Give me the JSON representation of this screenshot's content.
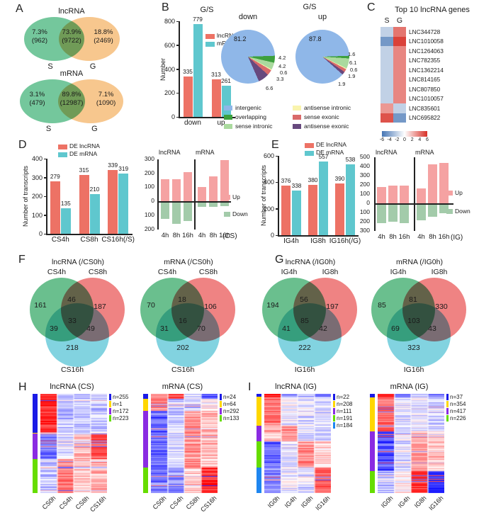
{
  "panel_letters": {
    "A": "A",
    "B": "B",
    "C": "C",
    "D": "D",
    "E": "E",
    "F": "F",
    "G": "G",
    "H": "H",
    "I": "I"
  },
  "pie_header": {
    "title": "G/S"
  },
  "colors": {
    "lncrna_bar": "#ed7265",
    "mrna_bar": "#5fc7ce",
    "up": "#f5a2a2",
    "down": "#a3cbaa",
    "venn_green": "#6abf8e",
    "venn_pink": "#ef8383",
    "venn_cyan": "#82d3e0"
  },
  "chart_data": [
    {
      "id": "vennA1",
      "type": "venn2",
      "title": "lncRNA",
      "sets": [
        "S",
        "G"
      ],
      "regions": {
        "left_pct": "7.3%",
        "left_n": "(962)",
        "overlap_pct": "73.9%",
        "overlap_n": "(9722)",
        "right_pct": "18.8%",
        "right_n": "(2469)"
      }
    },
    {
      "id": "vennA2",
      "type": "venn2",
      "title": "mRNA",
      "sets": [
        "S",
        "G"
      ],
      "regions": {
        "left_pct": "3.1%",
        "left_n": "(479)",
        "overlap_pct": "89.8%",
        "overlap_n": "(12987)",
        "right_pct": "7.1%",
        "right_n": "(1090)"
      }
    },
    {
      "id": "barB",
      "type": "bar",
      "title": "G/S",
      "ylabel": "Number",
      "ylim": [
        0,
        800
      ],
      "yticks": [
        0,
        200,
        400,
        600,
        800
      ],
      "categories": [
        "down",
        "up"
      ],
      "series": [
        {
          "name": "lncRNA",
          "color": "#ed7265",
          "values": [
            335,
            313
          ]
        },
        {
          "name": "mRNA",
          "color": "#5fc7ce",
          "values": [
            779,
            261
          ]
        }
      ]
    },
    {
      "id": "pieDown",
      "type": "pie",
      "title": "down",
      "labels": [
        "intergenic",
        "overlapping",
        "sense intronic",
        "antisense intronic",
        "sense exonic",
        "antisense exonic"
      ],
      "colors": [
        "#8fb7e8",
        "#3da03d",
        "#aada9e",
        "#f9f4ad",
        "#d96a6a",
        "#67497e"
      ],
      "values": [
        81.2,
        4.2,
        4.2,
        0.6,
        3.3,
        6.6
      ]
    },
    {
      "id": "pieUp",
      "type": "pie",
      "title": "up",
      "labels": [
        "intergenic",
        "overlapping",
        "sense intronic",
        "antisense intronic",
        "sense exonic",
        "antisense exonic"
      ],
      "colors": [
        "#8fb7e8",
        "#3da03d",
        "#aada9e",
        "#f9f4ad",
        "#d96a6a",
        "#67497e"
      ],
      "values": [
        87.8,
        1.6,
        6.1,
        0.6,
        1.9,
        1.9
      ]
    },
    {
      "id": "heatC",
      "type": "heatmap_genes",
      "title": "Top 10 lncRNA genes",
      "columns": [
        "S",
        "G"
      ],
      "genes": [
        "LNC344728",
        "LNC1010058",
        "LNC1264063",
        "LNC782355",
        "LNC1362214",
        "LNC814165",
        "LNC807850",
        "LNC1010057",
        "LNC835601",
        "LNC695822"
      ],
      "values": [
        [
          -2,
          4
        ],
        [
          -4.5,
          5.5
        ],
        [
          -2,
          3.5
        ],
        [
          -2,
          3.5
        ],
        [
          -2,
          3.5
        ],
        [
          -2,
          3.5
        ],
        [
          -2,
          3.5
        ],
        [
          -2,
          3.5
        ],
        [
          3,
          -2
        ],
        [
          5,
          -4.5
        ]
      ],
      "scale_ticks": [
        "-6",
        "-4",
        "-2",
        "0",
        "2",
        "4",
        "6"
      ]
    },
    {
      "id": "barD",
      "type": "bar",
      "ylabel": "Number of transcripts",
      "ylim": [
        0,
        400
      ],
      "yticks": [
        0,
        100,
        200,
        300,
        400
      ],
      "categories": [
        "CS4h",
        "CS8h",
        "CS16h"
      ],
      "axis_suffix": "(/S)",
      "series": [
        {
          "name": "DE lncRNA",
          "color": "#ed7265",
          "values": [
            279,
            315,
            339
          ]
        },
        {
          "name": "DE mRNA",
          "color": "#5fc7ce",
          "values": [
            135,
            210,
            319
          ]
        }
      ]
    },
    {
      "id": "udD",
      "type": "updown",
      "categories": [
        "4h",
        "8h",
        "16h"
      ],
      "axis_suffix": "(CS)",
      "up_label": "Up",
      "down_label": "Down",
      "uplim": 300,
      "downlim": 200,
      "ytick_step": 100,
      "panels": [
        {
          "title": "lncRNA",
          "up": [
            160,
            160,
            207
          ],
          "down": [
            119,
            155,
            132
          ]
        },
        {
          "title": "mRNA",
          "up": [
            100,
            180,
            295
          ],
          "down": [
            35,
            30,
            25
          ]
        }
      ]
    },
    {
      "id": "barE",
      "type": "bar",
      "ylabel": "Number of transcripts",
      "ylim": [
        0,
        600
      ],
      "yticks": [
        0,
        200,
        400,
        600
      ],
      "categories": [
        "IG4h",
        "IG8h",
        "IG16h"
      ],
      "axis_suffix": "(/G)",
      "series": [
        {
          "name": "DE lncRNA",
          "color": "#ed7265",
          "values": [
            376,
            380,
            390
          ]
        },
        {
          "name": "DE mRNA",
          "color": "#5fc7ce",
          "values": [
            338,
            557,
            538
          ]
        }
      ]
    },
    {
      "id": "udE",
      "type": "updown",
      "categories": [
        "4h",
        "8h",
        "16h"
      ],
      "axis_suffix": "(IG)",
      "up_label": "Up",
      "down_label": "Down",
      "uplim": 500,
      "downlim": 300,
      "ytick_step": 100,
      "panels": [
        {
          "title": "lncRNA",
          "up": [
            175,
            190,
            190
          ],
          "down": [
            201,
            190,
            200
          ]
        },
        {
          "title": "mRNA",
          "up": [
            165,
            425,
            440
          ],
          "down": [
            173,
            132,
            98
          ]
        }
      ]
    },
    {
      "id": "vennF1",
      "type": "venn3",
      "title": "lncRNA (/CS0h)",
      "sets": [
        "CS4h",
        "CS8h",
        "CS16h"
      ],
      "values": {
        "a": 161,
        "ab": 46,
        "b": 187,
        "ac": 39,
        "abc": 33,
        "bc": 49,
        "c": 218
      }
    },
    {
      "id": "vennF2",
      "type": "venn3",
      "title": "mRNA (/CS0h)",
      "sets": [
        "CS4h",
        "CS8h",
        "CS16h"
      ],
      "values": {
        "a": 70,
        "ab": 18,
        "b": 106,
        "ac": 31,
        "abc": 16,
        "bc": 70,
        "c": 202
      }
    },
    {
      "id": "vennG1",
      "type": "venn3",
      "title": "lncRNA (/IG0h)",
      "sets": [
        "IG4h",
        "IG8h",
        "IG16h"
      ],
      "values": {
        "a": 194,
        "ab": 56,
        "b": 197,
        "ac": 41,
        "abc": 85,
        "bc": 42,
        "c": 222
      }
    },
    {
      "id": "vennG2",
      "type": "venn3",
      "title": "mRNA (/IG0h)",
      "sets": [
        "IG4h",
        "IG8h",
        "IG16h"
      ],
      "values": {
        "a": 85,
        "ab": 81,
        "b": 330,
        "ac": 69,
        "abc": 103,
        "bc": 43,
        "c": 323
      }
    },
    {
      "id": "hmH1",
      "type": "heatmap_cluster",
      "title": "lncRNA (CS)",
      "columns": [
        "CS0h",
        "CS4h",
        "CS8h",
        "CS16h"
      ],
      "groups": [
        {
          "n": 255,
          "color": "#1a1ae6",
          "pattern": [
            2.4,
            -0.7,
            -0.7,
            -0.6
          ]
        },
        {
          "n": 1,
          "color": "#ffd700",
          "pattern": [
            0,
            0,
            0,
            0
          ]
        },
        {
          "n": 172,
          "color": "#8a2be2",
          "pattern": [
            -1.6,
            -0.4,
            0.9,
            1.9
          ]
        },
        {
          "n": 223,
          "color": "#66dd00",
          "pattern": [
            -0.7,
            1.6,
            0.7,
            0.9
          ]
        }
      ]
    },
    {
      "id": "hmH2",
      "type": "heatmap_cluster",
      "title": "mRNA (CS)",
      "columns": [
        "CS0h",
        "CS4h",
        "CS8h",
        "CS16h"
      ],
      "groups": [
        {
          "n": 24,
          "color": "#1a1ae6",
          "pattern": [
            1.2,
            2.2,
            -0.4,
            -2.2
          ]
        },
        {
          "n": 64,
          "color": "#ffd700",
          "pattern": [
            1.5,
            -0.8,
            -0.8,
            0.2
          ]
        },
        {
          "n": 292,
          "color": "#8a2be2",
          "pattern": [
            -1.8,
            -0.5,
            1.3,
            0.7
          ]
        },
        {
          "n": 133,
          "color": "#66dd00",
          "pattern": [
            -1.6,
            -1.2,
            0.6,
            2.4
          ]
        }
      ]
    },
    {
      "id": "hmI1",
      "type": "heatmap_cluster",
      "title": "lncRNA (IG)",
      "columns": [
        "IG0h",
        "IG4h",
        "IG8h",
        "IG16h"
      ],
      "groups": [
        {
          "n": 22,
          "color": "#1a1ae6",
          "pattern": [
            2.6,
            -1.2,
            -1.0,
            -1.6
          ]
        },
        {
          "n": 208,
          "color": "#ffd700",
          "pattern": [
            1.6,
            -0.2,
            -0.3,
            -0.4
          ]
        },
        {
          "n": 111,
          "color": "#8a2be2",
          "pattern": [
            0.8,
            1.2,
            -0.4,
            -0.6
          ]
        },
        {
          "n": 191,
          "color": "#66dd00",
          "pattern": [
            -1.8,
            -0.3,
            1.4,
            0.6
          ]
        },
        {
          "n": 184,
          "color": "#1e86f0",
          "pattern": [
            -1.4,
            -0.2,
            -0.4,
            1.9
          ]
        }
      ]
    },
    {
      "id": "hmI2",
      "type": "heatmap_cluster",
      "title": "mRNA (IG)",
      "columns": [
        "IG0h",
        "IG4h",
        "IG8h",
        "IG16h"
      ],
      "groups": [
        {
          "n": 37,
          "color": "#1a1ae6",
          "pattern": [
            2.6,
            -1.4,
            -0.8,
            -1.2
          ]
        },
        {
          "n": 354,
          "color": "#ffd700",
          "pattern": [
            1.8,
            -0.3,
            -0.3,
            -0.6
          ]
        },
        {
          "n": 417,
          "color": "#8a2be2",
          "pattern": [
            -2.0,
            -0.4,
            1.0,
            0.7
          ]
        },
        {
          "n": 226,
          "color": "#66dd00",
          "pattern": [
            -0.8,
            0.3,
            2.2,
            -2.4
          ]
        }
      ]
    }
  ]
}
